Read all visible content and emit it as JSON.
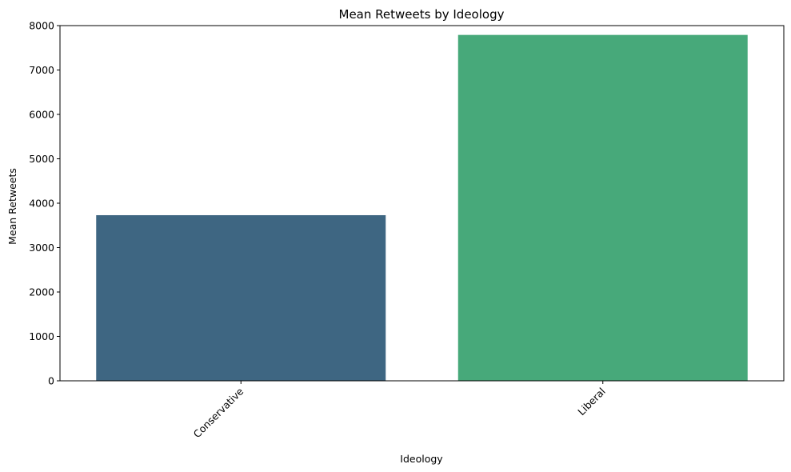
{
  "chart_data": {
    "type": "bar",
    "title": "Mean Retweets by Ideology",
    "xlabel": "Ideology",
    "ylabel": "Mean Retweets",
    "categories": [
      "Conservative",
      "Liberal"
    ],
    "values": [
      3730,
      7790
    ],
    "colors": [
      "#3e6682",
      "#47a97a"
    ],
    "ylim": [
      0,
      8000
    ],
    "yticks": [
      0,
      1000,
      2000,
      3000,
      4000,
      5000,
      6000,
      7000,
      8000
    ],
    "ytick_labels": [
      "0",
      "1000",
      "2000",
      "3000",
      "4000",
      "5000",
      "6000",
      "7000",
      "8000"
    ],
    "xtick_rotation_deg": 45,
    "grid": false,
    "legend": "none"
  }
}
